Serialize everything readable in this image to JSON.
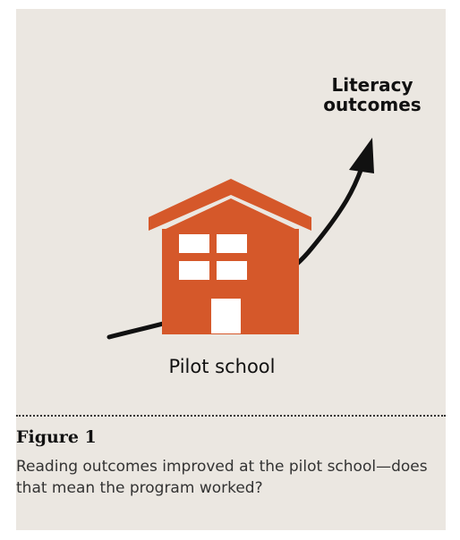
{
  "diagram": {
    "outcome_label_line1": "Literacy",
    "outcome_label_line2": "outcomes",
    "school_label": "Pilot school",
    "icons": [
      "school-building-icon",
      "upward-arrow-icon"
    ],
    "colors": {
      "building": "#d5582a",
      "arrow": "#111111",
      "background": "#ebe7e1"
    }
  },
  "figure": {
    "label": "Figure 1",
    "caption": "Reading outcomes improved at the pilot school—does that mean the program worked?"
  }
}
